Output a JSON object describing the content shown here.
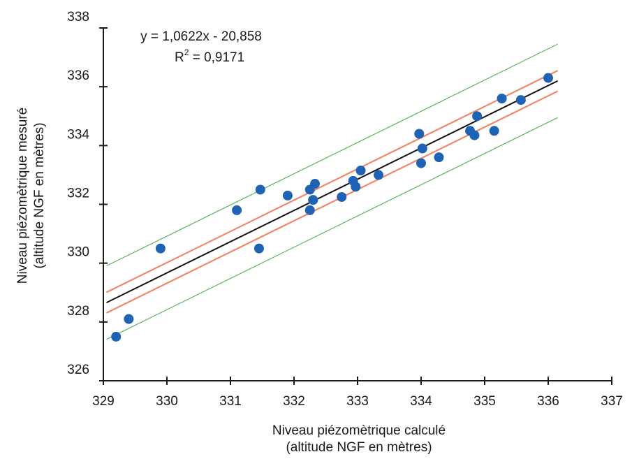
{
  "chart_data": {
    "type": "scatter",
    "x": [
      329.2,
      329.4,
      329.9,
      331.1,
      331.45,
      331.47,
      331.9,
      332.25,
      332.25,
      332.3,
      332.3,
      332.33,
      332.75,
      332.93,
      332.97,
      333.05,
      333.33,
      333.97,
      334.0,
      334.02,
      334.28,
      334.77,
      334.84,
      334.88,
      335.15,
      335.27,
      335.57,
      336.0
    ],
    "y": [
      327.5,
      328.1,
      330.5,
      331.8,
      330.5,
      332.5,
      332.3,
      331.8,
      332.5,
      332.15,
      332.15,
      332.7,
      332.25,
      332.8,
      332.6,
      333.15,
      333.0,
      334.4,
      333.4,
      333.9,
      333.6,
      334.5,
      334.35,
      335.0,
      334.5,
      335.6,
      335.55,
      336.3
    ],
    "regression": {
      "slope": 1.0622,
      "intercept": -20.858,
      "x_range": [
        329.05,
        336.15
      ]
    },
    "confidence_band_offset": 0.35,
    "prediction_band_offset": 1.25,
    "equation_text": "y = 1,0622x - 20,858",
    "r2_prefix": "R",
    "r2_exp": "2",
    "r2_value": " = 0,9171",
    "xlabel_line1": "Niveau piézomètrique calculé",
    "xlabel_line2": "(altitude NGF en mètres)",
    "ylabel_line1": "Niveau piézomètrique mesuré",
    "ylabel_line2": "(altitude NGF en mètres)",
    "xlim": [
      329,
      337
    ],
    "ylim": [
      326,
      338
    ],
    "x_ticks": [
      "329",
      "330",
      "331",
      "332",
      "333",
      "334",
      "335",
      "336",
      "337"
    ],
    "y_ticks": [
      "326",
      "328",
      "330",
      "332",
      "334",
      "336",
      "338"
    ],
    "grid": false,
    "colors": {
      "points": "#1f63b5",
      "regression": "#111111",
      "confidence": "#f0896a",
      "prediction": "#5bb55b",
      "axis": "#1a1a1a"
    }
  }
}
